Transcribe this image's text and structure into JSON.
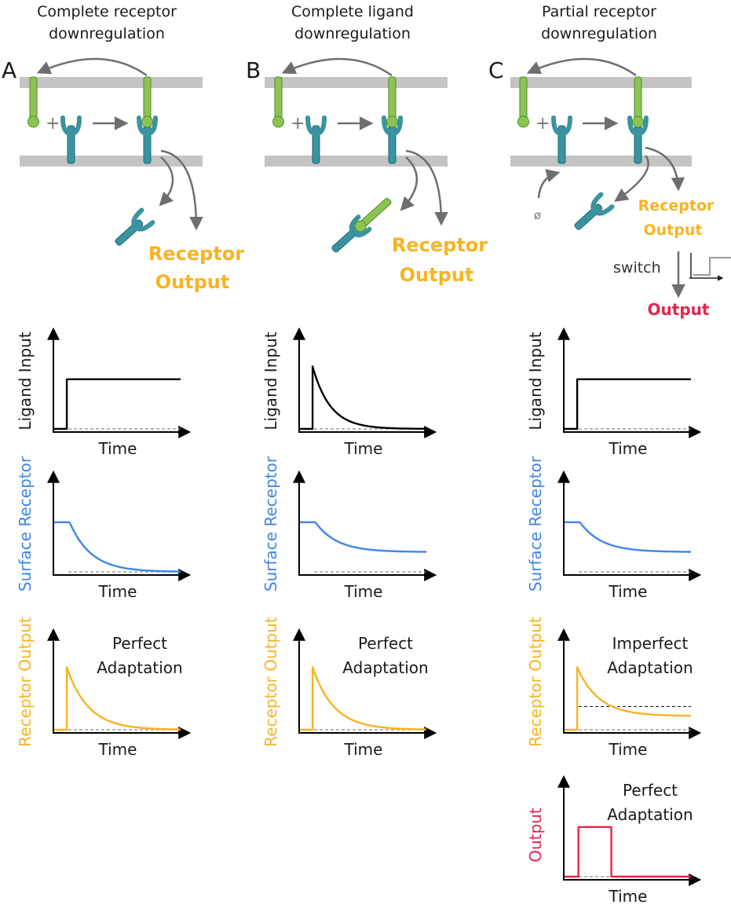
{
  "colors": {
    "membrane": "#c4c4c4",
    "ligand": "#8cc454",
    "ligand_stroke": "#4f8a2a",
    "receptor": "#3a93a0",
    "receptor_stroke": "#1f6770",
    "arrow": "#6e6e6e",
    "ligand_trace": "#000000",
    "surface_trace": "#3d86e8",
    "receptor_trace": "#f7b322",
    "output_trace": "#e8234a",
    "baseline": "#8a8a8a"
  },
  "panels": [
    {
      "letter": "A",
      "title_line1": "Complete receptor",
      "title_line2": "downregulation",
      "output_line1": "Receptor",
      "output_line2": "Output",
      "plots": [
        {
          "ylabel": "Ligand Input",
          "xlabel": "Time",
          "ann1": "",
          "ann2": ""
        },
        {
          "ylabel": "Surface Receptor",
          "xlabel": "Time",
          "ann1": "",
          "ann2": ""
        },
        {
          "ylabel": "Receptor Output",
          "xlabel": "Time",
          "ann1": "Perfect",
          "ann2": "Adaptation"
        }
      ]
    },
    {
      "letter": "B",
      "title_line1": "Complete ligand",
      "title_line2": "downregulation",
      "output_line1": "Receptor",
      "output_line2": "Output",
      "plots": [
        {
          "ylabel": "Ligand Input",
          "xlabel": "Time",
          "ann1": "",
          "ann2": ""
        },
        {
          "ylabel": "Surface Receptor",
          "xlabel": "Time",
          "ann1": "",
          "ann2": ""
        },
        {
          "ylabel": "Receptor Output",
          "xlabel": "Time",
          "ann1": "Perfect",
          "ann2": "Adaptation"
        }
      ]
    },
    {
      "letter": "C",
      "title_line1": "Partial receptor",
      "title_line2": "downregulation",
      "output_line1": "Receptor",
      "output_line2": "Output",
      "null_symbol": "ø",
      "switch_label": "switch",
      "final_output": "Output",
      "plots": [
        {
          "ylabel": "Ligand Input",
          "xlabel": "Time",
          "ann1": "",
          "ann2": ""
        },
        {
          "ylabel": "Surface Receptor",
          "xlabel": "Time",
          "ann1": "",
          "ann2": ""
        },
        {
          "ylabel": "Receptor Output",
          "xlabel": "Time",
          "ann1": "Imperfect",
          "ann2": "Adaptation"
        },
        {
          "ylabel": "Output",
          "xlabel": "Time",
          "ann1": "Perfect",
          "ann2": "Adaptation"
        }
      ]
    }
  ]
}
